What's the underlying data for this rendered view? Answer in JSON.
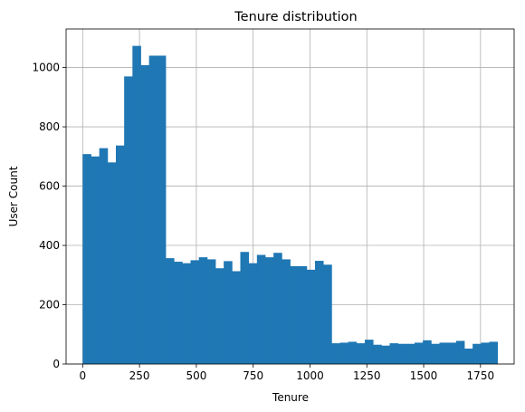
{
  "chart_data": {
    "type": "bar",
    "title": "Tenure distribution",
    "xlabel": "Tenure",
    "ylabel": "User Count",
    "xlim": [
      -73,
      1898
    ],
    "ylim": [
      0,
      1130
    ],
    "xticks": [
      0,
      250,
      500,
      750,
      1000,
      1250,
      1500,
      1750
    ],
    "yticks": [
      0,
      200,
      400,
      600,
      800,
      1000
    ],
    "grid": true,
    "bar_color": "#1f77b4",
    "bin_start": 0,
    "bin_width": 36.5,
    "values": [
      708,
      700,
      728,
      680,
      737,
      970,
      1073,
      1008,
      1040,
      1040,
      357,
      345,
      340,
      350,
      360,
      353,
      323,
      347,
      313,
      378,
      340,
      368,
      360,
      375,
      353,
      330,
      330,
      318,
      348,
      335,
      70,
      72,
      75,
      70,
      82,
      65,
      62,
      70,
      68,
      68,
      72,
      80,
      68,
      72,
      72,
      78,
      52,
      68,
      72,
      75
    ]
  }
}
